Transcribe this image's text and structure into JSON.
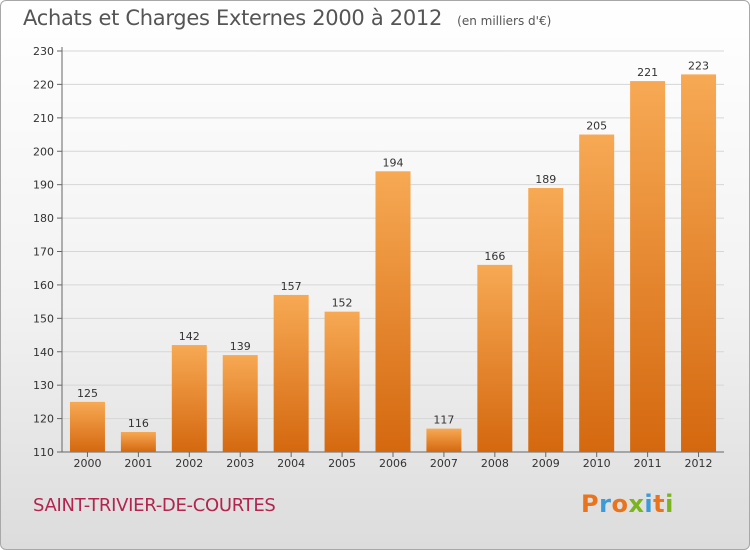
{
  "title": "Achats et Charges Externes 2000 à 2012",
  "unit": "(en milliers d'€)",
  "commune": "SAINT-TRIVIER-DE-COURTES",
  "logo": {
    "letters": [
      "P",
      "r",
      "o",
      "x",
      "i",
      "t",
      "i"
    ],
    "colors": [
      "#e9741b",
      "#3b9ad9",
      "#e9741b",
      "#7ab51d",
      "#3b9ad9",
      "#e9741b",
      "#7ab51d"
    ]
  },
  "colors": {
    "bar_top": "#f7a954",
    "bar_bottom": "#d4680f",
    "title": "#555555",
    "commune": "#b3244e"
  },
  "chart_data": {
    "type": "bar",
    "title": "Achats et Charges Externes 2000 à 2012",
    "subtitle": "(en milliers d'€)",
    "categories": [
      "2000",
      "2001",
      "2002",
      "2003",
      "2004",
      "2005",
      "2006",
      "2007",
      "2008",
      "2009",
      "2010",
      "2011",
      "2012"
    ],
    "values": [
      125,
      116,
      142,
      139,
      157,
      152,
      194,
      117,
      166,
      189,
      205,
      221,
      223
    ],
    "ylim": [
      110,
      230
    ],
    "yticks": [
      110,
      120,
      130,
      140,
      150,
      160,
      170,
      180,
      190,
      200,
      210,
      220,
      230
    ],
    "grid": true,
    "data_labels": true
  }
}
